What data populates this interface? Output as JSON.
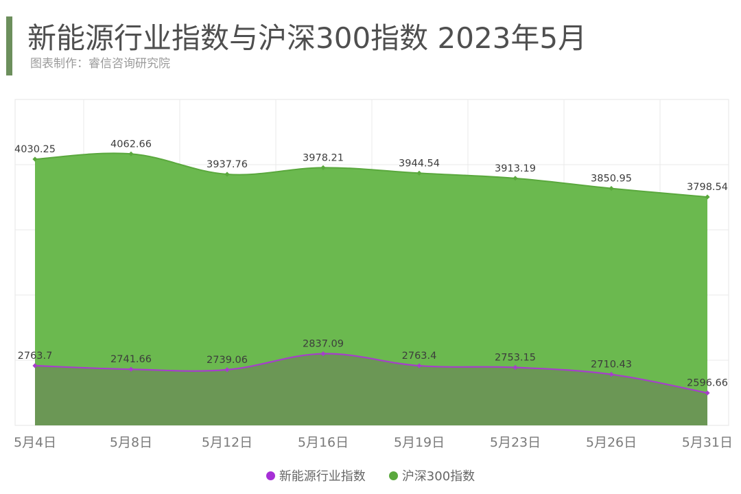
{
  "header": {
    "title": "新能源行业指数与沪深300指数 2023年5月",
    "subtitle": "图表制作：睿信咨询研究院",
    "accent_color": "#6c8f5c"
  },
  "chart_data": {
    "type": "area",
    "title": "新能源行业指数与沪深300指数 2023年5月",
    "xlabel": "",
    "ylabel": "",
    "categories": [
      "5月4日",
      "5月8日",
      "5月12日",
      "5月16日",
      "5月19日",
      "5月23日",
      "5月26日",
      "5月31日"
    ],
    "series": [
      {
        "name": "沪深300指数",
        "values": [
          4030.25,
          4062.66,
          3937.76,
          3978.21,
          3944.54,
          3913.19,
          3850.95,
          3798.54
        ],
        "labels": [
          "4030.25",
          "4062.66",
          "3937.76",
          "3978.21",
          "3944.54",
          "3913.19",
          "3850.95",
          "3798.54"
        ],
        "fill_color": "#6bb94f",
        "line_color": "#5aa83d",
        "marker_color": "#5aa83d"
      },
      {
        "name": "新能源行业指数",
        "values": [
          2763.7,
          2741.66,
          2739.06,
          2837.09,
          2763.4,
          2753.15,
          2710.43,
          2596.66
        ],
        "labels": [
          "2763.7",
          "2741.66",
          "2739.06",
          "2837.09",
          "2763.4",
          "2753.15",
          "2710.43",
          "2596.66"
        ],
        "fill_color": "#6b9555",
        "line_color": "#a63ecb",
        "marker_color": "#a63ecb"
      }
    ],
    "grid": true,
    "legend_position": "bottom",
    "legend": [
      {
        "name": "新能源行业指数",
        "color": "#a62fd6"
      },
      {
        "name": "沪深300指数",
        "color": "#5aa83d"
      }
    ]
  }
}
